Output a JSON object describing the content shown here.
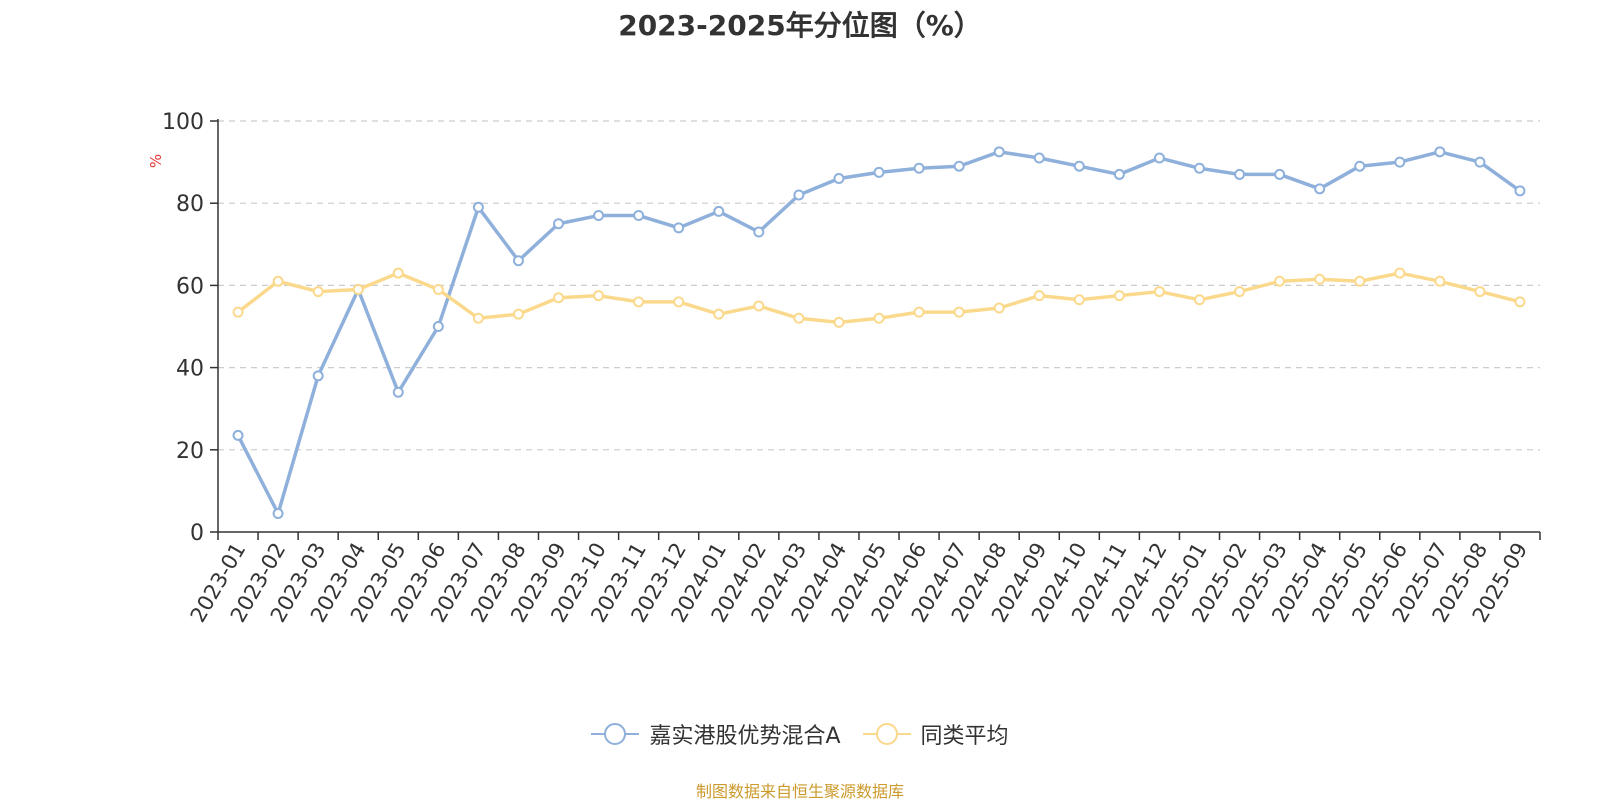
{
  "chart_data": {
    "type": "line",
    "title": "2023-2025年分位图（%）",
    "ylabel": "%",
    "ylim": [
      0,
      100
    ],
    "yticks": [
      0,
      20,
      40,
      60,
      80,
      100
    ],
    "grid": true,
    "legend_position": "bottom",
    "categories": [
      "2023-01",
      "2023-02",
      "2023-03",
      "2023-04",
      "2023-05",
      "2023-06",
      "2023-07",
      "2023-08",
      "2023-09",
      "2023-10",
      "2023-11",
      "2023-12",
      "2024-01",
      "2024-02",
      "2024-03",
      "2024-04",
      "2024-05",
      "2024-06",
      "2024-07",
      "2024-08",
      "2024-09",
      "2024-10",
      "2024-11",
      "2024-12",
      "2025-01",
      "2025-02",
      "2025-03",
      "2025-04",
      "2025-05",
      "2025-06",
      "2025-07",
      "2025-08",
      "2025-09"
    ],
    "series": [
      {
        "name": "嘉实港股优势混合A",
        "color": "#8eb0db",
        "values": [
          23.5,
          4.5,
          38,
          59,
          34,
          50,
          79,
          66,
          75,
          77,
          77,
          74,
          78,
          73,
          82,
          86,
          87.5,
          88.5,
          89,
          92.5,
          91,
          89,
          87,
          91,
          88.5,
          87,
          87,
          83.5,
          89,
          90,
          92.5,
          90,
          83
        ]
      },
      {
        "name": "同类平均",
        "color": "#fbd98c",
        "values": [
          53.5,
          61,
          58.5,
          59,
          63,
          59,
          52,
          53,
          57,
          57.5,
          56,
          56,
          53,
          55,
          52,
          51,
          52,
          53.5,
          53.5,
          54.5,
          57.5,
          56.5,
          57.5,
          58.5,
          56.5,
          58.5,
          61,
          61.5,
          61,
          63,
          61,
          58.5,
          56
        ]
      }
    ]
  },
  "source_text": "制图数据来自恒生聚源数据库"
}
